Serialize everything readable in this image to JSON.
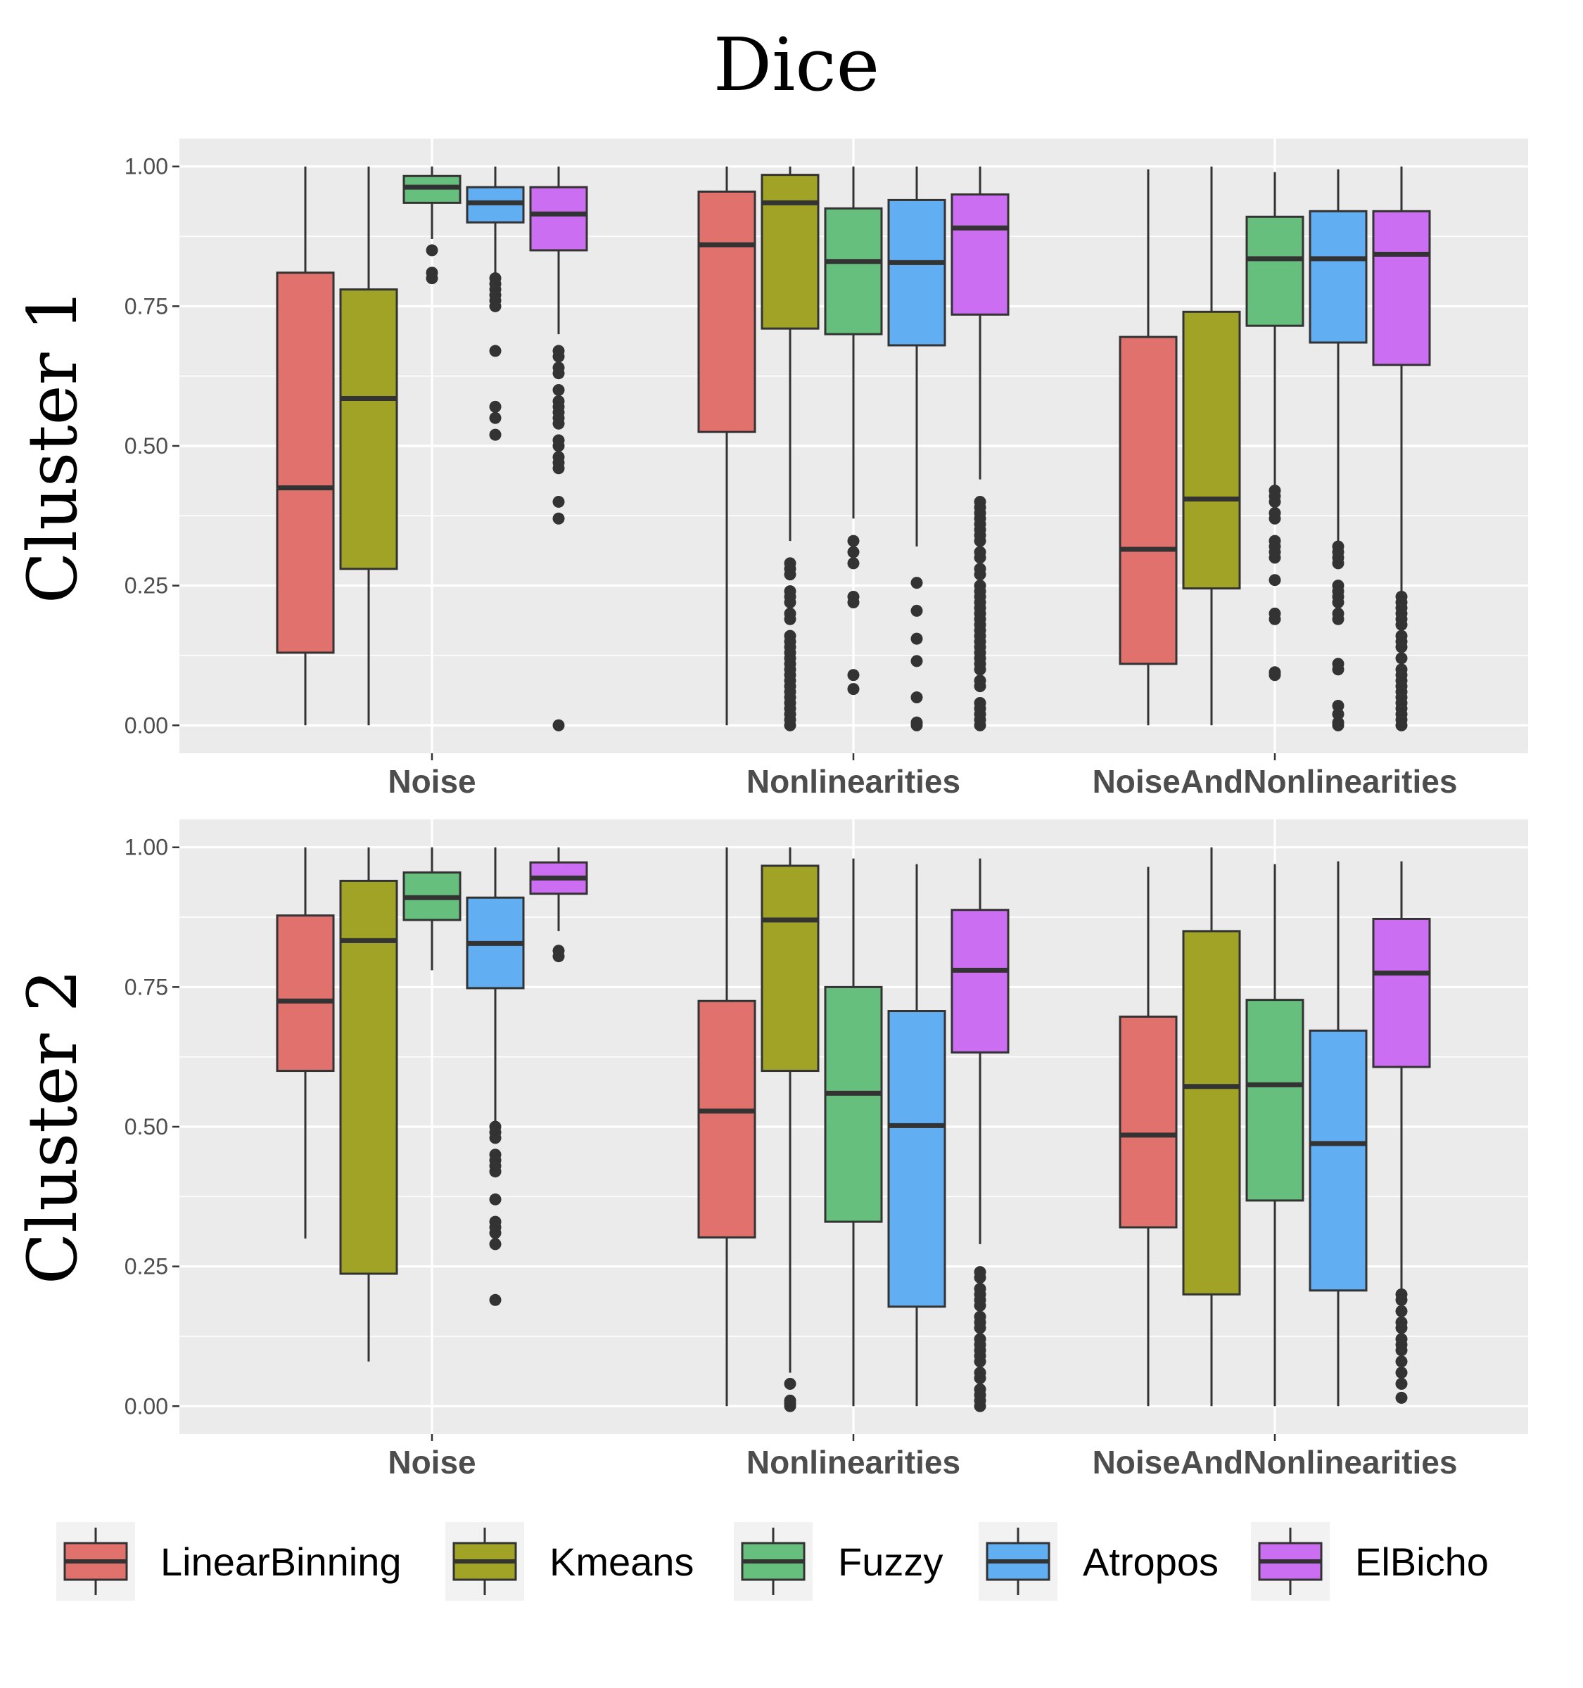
{
  "chart_data": {
    "type": "boxplot",
    "title": "Dice",
    "categories": [
      "Noise",
      "Nonlinearities",
      "NoiseAndNonlinearities"
    ],
    "ylim": [
      -0.05,
      1.05
    ],
    "yticks": [
      "1.00",
      "0.75",
      "0.50",
      "0.25",
      "0.00"
    ],
    "ytick_values": [
      1.0,
      0.75,
      0.5,
      0.25,
      0.0
    ],
    "grid": true,
    "legend_position": "bottom",
    "series_meta": [
      {
        "name": "LinearBinning",
        "color": "#E0716C"
      },
      {
        "name": "Kmeans",
        "color": "#A0A325"
      },
      {
        "name": "Fuzzy",
        "color": "#67BF7E"
      },
      {
        "name": "Atropos",
        "color": "#61AEF2"
      },
      {
        "name": "ElBicho",
        "color": "#CB6EF2"
      }
    ],
    "panels": [
      {
        "label": "Cluster 1",
        "groups": [
          [
            {
              "min": 0.0,
              "q1": 0.13,
              "median": 0.425,
              "q3": 0.81,
              "max": 1.0,
              "outliers": []
            },
            {
              "min": 0.0,
              "q1": 0.28,
              "median": 0.585,
              "q3": 0.78,
              "max": 1.0,
              "outliers": []
            },
            {
              "min": 0.87,
              "q1": 0.935,
              "median": 0.963,
              "q3": 0.983,
              "max": 1.0,
              "outliers": [
                0.85,
                0.81,
                0.8
              ]
            },
            {
              "min": 0.81,
              "q1": 0.9,
              "median": 0.935,
              "q3": 0.963,
              "max": 1.0,
              "outliers": [
                0.8,
                0.79,
                0.78,
                0.77,
                0.76,
                0.75,
                0.67,
                0.57,
                0.55,
                0.52
              ]
            },
            {
              "min": 0.7,
              "q1": 0.85,
              "median": 0.915,
              "q3": 0.963,
              "max": 1.0,
              "outliers": [
                0.67,
                0.66,
                0.64,
                0.63,
                0.6,
                0.58,
                0.57,
                0.56,
                0.55,
                0.54,
                0.51,
                0.5,
                0.48,
                0.47,
                0.46,
                0.4,
                0.37,
                0.0
              ]
            }
          ],
          [
            {
              "min": 0.0,
              "q1": 0.525,
              "median": 0.86,
              "q3": 0.955,
              "max": 1.0,
              "outliers": []
            },
            {
              "min": 0.33,
              "q1": 0.71,
              "median": 0.935,
              "q3": 0.985,
              "max": 1.0,
              "outliers": [
                0.29,
                0.28,
                0.27,
                0.24,
                0.23,
                0.22,
                0.2,
                0.19,
                0.16,
                0.15,
                0.14,
                0.13,
                0.12,
                0.11,
                0.1,
                0.09,
                0.08,
                0.07,
                0.06,
                0.05,
                0.04,
                0.03,
                0.02,
                0.01,
                0.0
              ]
            },
            {
              "min": 0.37,
              "q1": 0.7,
              "median": 0.83,
              "q3": 0.925,
              "max": 1.0,
              "outliers": [
                0.33,
                0.31,
                0.29,
                0.23,
                0.22,
                0.09,
                0.065
              ]
            },
            {
              "min": 0.32,
              "q1": 0.68,
              "median": 0.828,
              "q3": 0.94,
              "max": 1.0,
              "outliers": [
                0.255,
                0.205,
                0.155,
                0.115,
                0.05,
                0.005,
                0.0
              ]
            },
            {
              "min": 0.44,
              "q1": 0.735,
              "median": 0.89,
              "q3": 0.95,
              "max": 1.0,
              "outliers": [
                0.4,
                0.39,
                0.38,
                0.37,
                0.36,
                0.35,
                0.34,
                0.33,
                0.31,
                0.3,
                0.28,
                0.27,
                0.25,
                0.24,
                0.23,
                0.22,
                0.21,
                0.2,
                0.19,
                0.18,
                0.17,
                0.16,
                0.15,
                0.14,
                0.13,
                0.12,
                0.11,
                0.1,
                0.08,
                0.07,
                0.04,
                0.03,
                0.02,
                0.01,
                0.0
              ]
            }
          ],
          [
            {
              "min": 0.0,
              "q1": 0.11,
              "median": 0.315,
              "q3": 0.695,
              "max": 0.995,
              "outliers": []
            },
            {
              "min": 0.0,
              "q1": 0.245,
              "median": 0.405,
              "q3": 0.74,
              "max": 1.0,
              "outliers": []
            },
            {
              "min": 0.43,
              "q1": 0.715,
              "median": 0.835,
              "q3": 0.91,
              "max": 0.99,
              "outliers": [
                0.42,
                0.41,
                0.4,
                0.38,
                0.37,
                0.33,
                0.32,
                0.31,
                0.3,
                0.26,
                0.2,
                0.19,
                0.095,
                0.09
              ]
            },
            {
              "min": 0.32,
              "q1": 0.685,
              "median": 0.835,
              "q3": 0.92,
              "max": 0.995,
              "outliers": [
                0.32,
                0.31,
                0.3,
                0.29,
                0.25,
                0.24,
                0.23,
                0.22,
                0.2,
                0.19,
                0.11,
                0.1,
                0.035,
                0.02,
                0.005,
                0.0
              ]
            },
            {
              "min": 0.24,
              "q1": 0.645,
              "median": 0.843,
              "q3": 0.92,
              "max": 1.0,
              "outliers": [
                0.23,
                0.22,
                0.21,
                0.2,
                0.19,
                0.18,
                0.16,
                0.15,
                0.14,
                0.12,
                0.1,
                0.09,
                0.08,
                0.07,
                0.06,
                0.05,
                0.04,
                0.03,
                0.02,
                0.01,
                0.0
              ]
            }
          ]
        ]
      },
      {
        "label": "Cluster 2",
        "groups": [
          [
            {
              "min": 0.3,
              "q1": 0.6,
              "median": 0.725,
              "q3": 0.878,
              "max": 1.0,
              "outliers": []
            },
            {
              "min": 0.08,
              "q1": 0.237,
              "median": 0.833,
              "q3": 0.94,
              "max": 1.0,
              "outliers": []
            },
            {
              "min": 0.78,
              "q1": 0.87,
              "median": 0.91,
              "q3": 0.955,
              "max": 1.0,
              "outliers": []
            },
            {
              "min": 0.51,
              "q1": 0.748,
              "median": 0.828,
              "q3": 0.91,
              "max": 1.0,
              "outliers": [
                0.5,
                0.49,
                0.48,
                0.45,
                0.44,
                0.43,
                0.42,
                0.37,
                0.33,
                0.32,
                0.31,
                0.29,
                0.19
              ]
            },
            {
              "min": 0.85,
              "q1": 0.917,
              "median": 0.945,
              "q3": 0.973,
              "max": 1.0,
              "outliers": [
                0.815,
                0.805
              ]
            }
          ],
          [
            {
              "min": 0.0,
              "q1": 0.302,
              "median": 0.528,
              "q3": 0.725,
              "max": 1.0,
              "outliers": []
            },
            {
              "min": 0.06,
              "q1": 0.6,
              "median": 0.87,
              "q3": 0.967,
              "max": 1.0,
              "outliers": [
                0.04,
                0.01,
                0.005,
                0.0
              ]
            },
            {
              "min": 0.0,
              "q1": 0.33,
              "median": 0.56,
              "q3": 0.75,
              "max": 0.98,
              "outliers": []
            },
            {
              "min": 0.0,
              "q1": 0.178,
              "median": 0.502,
              "q3": 0.707,
              "max": 0.97,
              "outliers": []
            },
            {
              "min": 0.29,
              "q1": 0.633,
              "median": 0.78,
              "q3": 0.888,
              "max": 0.98,
              "outliers": [
                0.24,
                0.23,
                0.21,
                0.2,
                0.19,
                0.18,
                0.16,
                0.15,
                0.14,
                0.12,
                0.11,
                0.1,
                0.09,
                0.08,
                0.06,
                0.05,
                0.03,
                0.02,
                0.01,
                0.0
              ]
            }
          ],
          [
            {
              "min": 0.0,
              "q1": 0.32,
              "median": 0.485,
              "q3": 0.697,
              "max": 0.965,
              "outliers": []
            },
            {
              "min": 0.0,
              "q1": 0.2,
              "median": 0.572,
              "q3": 0.85,
              "max": 1.0,
              "outliers": []
            },
            {
              "min": 0.0,
              "q1": 0.368,
              "median": 0.575,
              "q3": 0.727,
              "max": 0.97,
              "outliers": []
            },
            {
              "min": 0.0,
              "q1": 0.207,
              "median": 0.47,
              "q3": 0.672,
              "max": 0.975,
              "outliers": []
            },
            {
              "min": 0.21,
              "q1": 0.607,
              "median": 0.775,
              "q3": 0.872,
              "max": 0.975,
              "outliers": [
                0.2,
                0.19,
                0.17,
                0.15,
                0.14,
                0.12,
                0.11,
                0.1,
                0.08,
                0.06,
                0.04,
                0.015
              ]
            }
          ]
        ]
      }
    ]
  }
}
